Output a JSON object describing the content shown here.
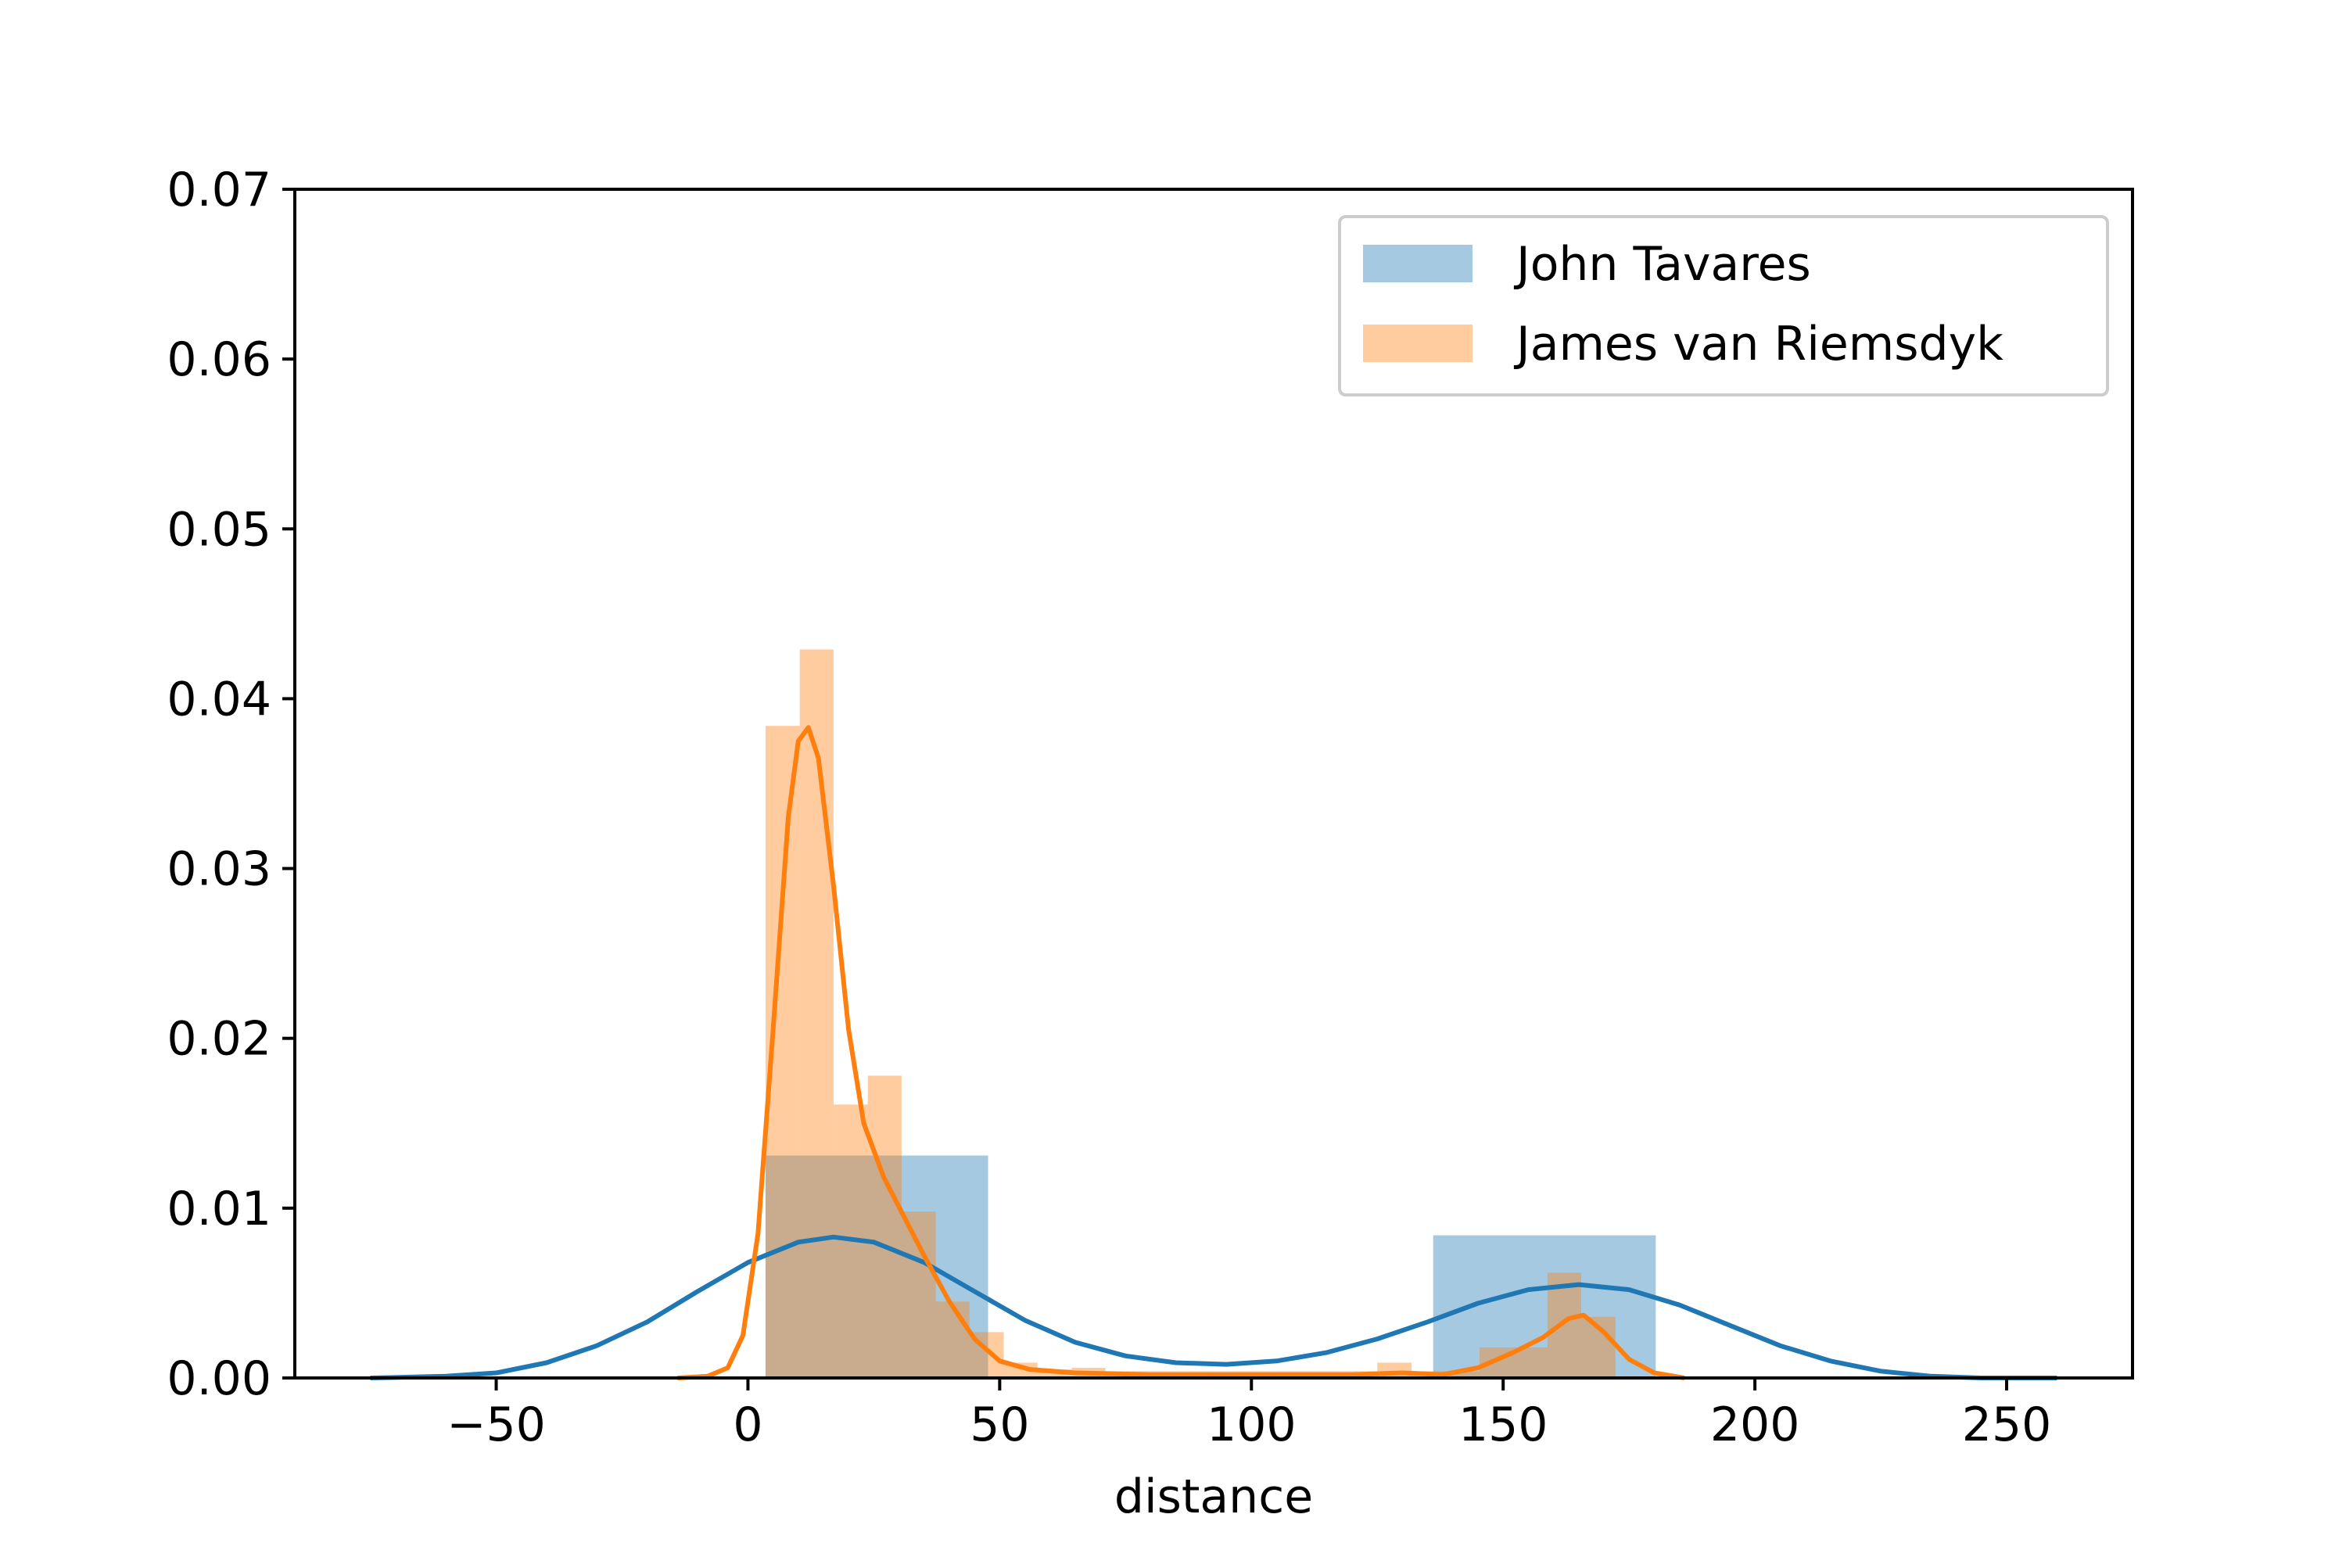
{
  "chart_data": {
    "type": "histogram_kde",
    "title": "",
    "xlabel": "distance",
    "ylabel": "",
    "xlim": [
      -90,
      275
    ],
    "ylim": [
      0,
      0.07
    ],
    "grid": false,
    "legend_position": "top-right",
    "x_ticks": [
      -50,
      0,
      50,
      100,
      150,
      200,
      250
    ],
    "x_tick_labels": [
      "−50",
      "0",
      "50",
      "100",
      "150",
      "200",
      "250"
    ],
    "y_ticks": [
      0,
      0.01,
      0.02,
      0.03,
      0.04,
      0.05,
      0.06,
      0.07
    ],
    "y_tick_labels": [
      "0.00",
      "0.01",
      "0.02",
      "0.03",
      "0.04",
      "0.05",
      "0.06",
      "0.07"
    ],
    "series": [
      {
        "name": "John Tavares",
        "color": "#1f77b4",
        "bar_opacity": 0.4,
        "histogram": [
          {
            "x0": 3.5,
            "x1": 47.7,
            "density": 0.0131
          },
          {
            "x0": 47.7,
            "x1": 91.9,
            "density": 0.0
          },
          {
            "x0": 91.9,
            "x1": 136.1,
            "density": 0.0
          },
          {
            "x0": 136.1,
            "x1": 180.3,
            "density": 0.0084
          }
        ],
        "kde": [
          [
            -75,
            0.0
          ],
          [
            -60,
            0.0001
          ],
          [
            -50,
            0.0003
          ],
          [
            -40,
            0.0009
          ],
          [
            -30,
            0.0019
          ],
          [
            -20,
            0.0033
          ],
          [
            -10,
            0.0051
          ],
          [
            0,
            0.0068
          ],
          [
            10,
            0.008
          ],
          [
            17,
            0.0083
          ],
          [
            25,
            0.008
          ],
          [
            35,
            0.0068
          ],
          [
            45,
            0.0051
          ],
          [
            55,
            0.0034
          ],
          [
            65,
            0.0021
          ],
          [
            75,
            0.0013
          ],
          [
            85,
            0.0009
          ],
          [
            95,
            0.0008
          ],
          [
            105,
            0.001
          ],
          [
            115,
            0.0015
          ],
          [
            125,
            0.0023
          ],
          [
            135,
            0.0033
          ],
          [
            145,
            0.0044
          ],
          [
            155,
            0.0052
          ],
          [
            165,
            0.0055
          ],
          [
            175,
            0.0052
          ],
          [
            185,
            0.0043
          ],
          [
            195,
            0.0031
          ],
          [
            205,
            0.0019
          ],
          [
            215,
            0.001
          ],
          [
            225,
            0.0004
          ],
          [
            235,
            0.0001
          ],
          [
            245,
            0.0
          ],
          [
            260,
            0.0
          ]
        ]
      },
      {
        "name": "James van Riemsdyk",
        "color": "#ff7f0e",
        "bar_opacity": 0.4,
        "histogram": [
          {
            "x0": 3.5,
            "x1": 10.3,
            "density": 0.0384
          },
          {
            "x0": 10.3,
            "x1": 17.0,
            "density": 0.0429
          },
          {
            "x0": 17.0,
            "x1": 23.8,
            "density": 0.0161
          },
          {
            "x0": 23.8,
            "x1": 30.5,
            "density": 0.0178
          },
          {
            "x0": 30.5,
            "x1": 37.3,
            "density": 0.0098
          },
          {
            "x0": 37.3,
            "x1": 44.0,
            "density": 0.0045
          },
          {
            "x0": 44.0,
            "x1": 50.8,
            "density": 0.0027
          },
          {
            "x0": 50.8,
            "x1": 57.5,
            "density": 0.0009
          },
          {
            "x0": 57.5,
            "x1": 64.3,
            "density": 0.0005
          },
          {
            "x0": 64.3,
            "x1": 71.0,
            "density": 0.0006
          },
          {
            "x0": 71.0,
            "x1": 77.8,
            "density": 0.0004
          },
          {
            "x0": 77.8,
            "x1": 84.5,
            "density": 0.0004
          },
          {
            "x0": 84.5,
            "x1": 91.3,
            "density": 0.0004
          },
          {
            "x0": 91.3,
            "x1": 98.0,
            "density": 0.0004
          },
          {
            "x0": 98.0,
            "x1": 104.8,
            "density": 0.0004
          },
          {
            "x0": 104.8,
            "x1": 111.5,
            "density": 0.0004
          },
          {
            "x0": 111.5,
            "x1": 118.3,
            "density": 0.0004
          },
          {
            "x0": 118.3,
            "x1": 125.0,
            "density": 0.0004
          },
          {
            "x0": 125.0,
            "x1": 131.8,
            "density": 0.0009
          },
          {
            "x0": 131.8,
            "x1": 138.5,
            "density": 0.0004
          },
          {
            "x0": 138.5,
            "x1": 145.3,
            "density": 0.0004
          },
          {
            "x0": 145.3,
            "x1": 152.0,
            "density": 0.0018
          },
          {
            "x0": 152.0,
            "x1": 158.8,
            "density": 0.0018
          },
          {
            "x0": 158.8,
            "x1": 165.5,
            "density": 0.0062
          },
          {
            "x0": 165.5,
            "x1": 172.3,
            "density": 0.0036
          }
        ],
        "kde": [
          [
            -14,
            0.0
          ],
          [
            -8,
            0.0001
          ],
          [
            -4,
            0.0006
          ],
          [
            -1,
            0.0025
          ],
          [
            2,
            0.0085
          ],
          [
            5,
            0.0205
          ],
          [
            8,
            0.033
          ],
          [
            10,
            0.0375
          ],
          [
            12,
            0.0383
          ],
          [
            14,
            0.0365
          ],
          [
            17,
            0.029
          ],
          [
            20,
            0.0205
          ],
          [
            23,
            0.015
          ],
          [
            27,
            0.0118
          ],
          [
            31,
            0.0095
          ],
          [
            35,
            0.0072
          ],
          [
            40,
            0.0045
          ],
          [
            45,
            0.0023
          ],
          [
            50,
            0.001
          ],
          [
            56,
            0.0005
          ],
          [
            65,
            0.0003
          ],
          [
            80,
            0.0002
          ],
          [
            100,
            0.0002
          ],
          [
            120,
            0.0002
          ],
          [
            130,
            0.0003
          ],
          [
            138,
            0.0002
          ],
          [
            145,
            0.0006
          ],
          [
            152,
            0.0015
          ],
          [
            158,
            0.0024
          ],
          [
            163,
            0.0035
          ],
          [
            166,
            0.0037
          ],
          [
            170,
            0.0027
          ],
          [
            175,
            0.0011
          ],
          [
            180,
            0.0003
          ],
          [
            186,
            0.0
          ]
        ]
      }
    ]
  }
}
